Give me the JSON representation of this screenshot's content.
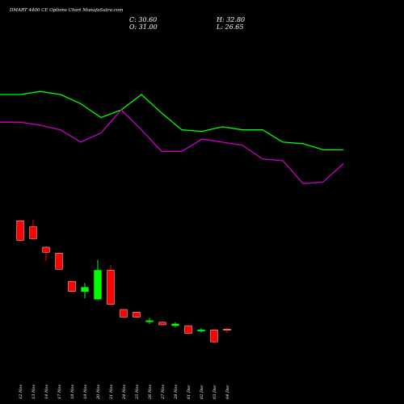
{
  "header": {
    "title": "DMART 4400  CE Options  Chart MunafaSutra.com",
    "close": "C: 30.60",
    "open": "O: 31.00",
    "high": "H: 32.80",
    "low": "L: 26.65"
  },
  "colors": {
    "background": "#000000",
    "up": "#00ff00",
    "down": "#ff0000",
    "line_upper": "#00ff00",
    "line_lower": "#cc00cc"
  },
  "chart_data": {
    "type": "candlestick",
    "grid": false,
    "categories": [
      "12 Nov",
      "13 Nov",
      "14 Nov",
      "17 Nov",
      "18 Nov",
      "19 Nov",
      "20 Nov",
      "21 Nov",
      "24 Nov",
      "25 Nov",
      "26 Nov",
      "27 Nov",
      "28 Nov",
      "01 Dec",
      "02 Dec",
      "03 Dec",
      "04 Dec"
    ],
    "candles": [
      {
        "open": 158,
        "high": 159,
        "low": 134,
        "close": 135
      },
      {
        "open": 151,
        "high": 159,
        "low": 137,
        "close": 137
      },
      {
        "open": 127,
        "high": 128,
        "low": 111,
        "close": 121
      },
      {
        "open": 120,
        "high": 120,
        "low": 101,
        "close": 101
      },
      {
        "open": 87,
        "high": 87,
        "low": 75,
        "close": 75
      },
      {
        "open": 75,
        "high": 85,
        "low": 67,
        "close": 80
      },
      {
        "open": 66,
        "high": 112,
        "low": 66,
        "close": 100
      },
      {
        "open": 100,
        "high": 106,
        "low": 59,
        "close": 60
      },
      {
        "open": 54,
        "high": 54,
        "low": 45,
        "close": 45
      },
      {
        "open": 51,
        "high": 51,
        "low": 44,
        "close": 45
      },
      {
        "open": 40,
        "high": 44,
        "low": 37,
        "close": 41
      },
      {
        "open": 39,
        "high": 40,
        "low": 36,
        "close": 36
      },
      {
        "open": 35,
        "high": 39,
        "low": 33,
        "close": 37
      },
      {
        "open": 35,
        "high": 35,
        "low": 25,
        "close": 26
      },
      {
        "open": 30,
        "high": 32,
        "low": 27,
        "close": 30
      },
      {
        "open": 30,
        "high": 30,
        "low": 15,
        "close": 16
      },
      {
        "open": 31.0,
        "high": 32.8,
        "low": 26.65,
        "close": 30.6
      }
    ],
    "lines": [
      {
        "color": "#00ff00",
        "points": [
          [
            0,
            70
          ],
          [
            1,
            70
          ],
          [
            2,
            72
          ],
          [
            3,
            70
          ],
          [
            4,
            64
          ],
          [
            5,
            55
          ],
          [
            6,
            60
          ],
          [
            7,
            70
          ],
          [
            8,
            58
          ],
          [
            9,
            47
          ],
          [
            10,
            46
          ],
          [
            11,
            49
          ],
          [
            12,
            47
          ],
          [
            13,
            47
          ],
          [
            14,
            39
          ],
          [
            15,
            38
          ],
          [
            16,
            34
          ],
          [
            17,
            34
          ]
        ]
      },
      {
        "color": "#cc00cc",
        "points": [
          [
            0,
            52
          ],
          [
            1,
            52
          ],
          [
            2,
            50
          ],
          [
            3,
            47
          ],
          [
            4,
            39
          ],
          [
            5,
            45
          ],
          [
            6,
            60
          ],
          [
            7,
            47
          ],
          [
            8,
            33
          ],
          [
            9,
            33
          ],
          [
            10,
            41
          ],
          [
            11,
            39
          ],
          [
            12,
            37
          ],
          [
            13,
            28
          ],
          [
            14,
            27
          ],
          [
            15,
            12
          ],
          [
            16,
            13
          ],
          [
            17,
            25
          ]
        ]
      }
    ]
  }
}
